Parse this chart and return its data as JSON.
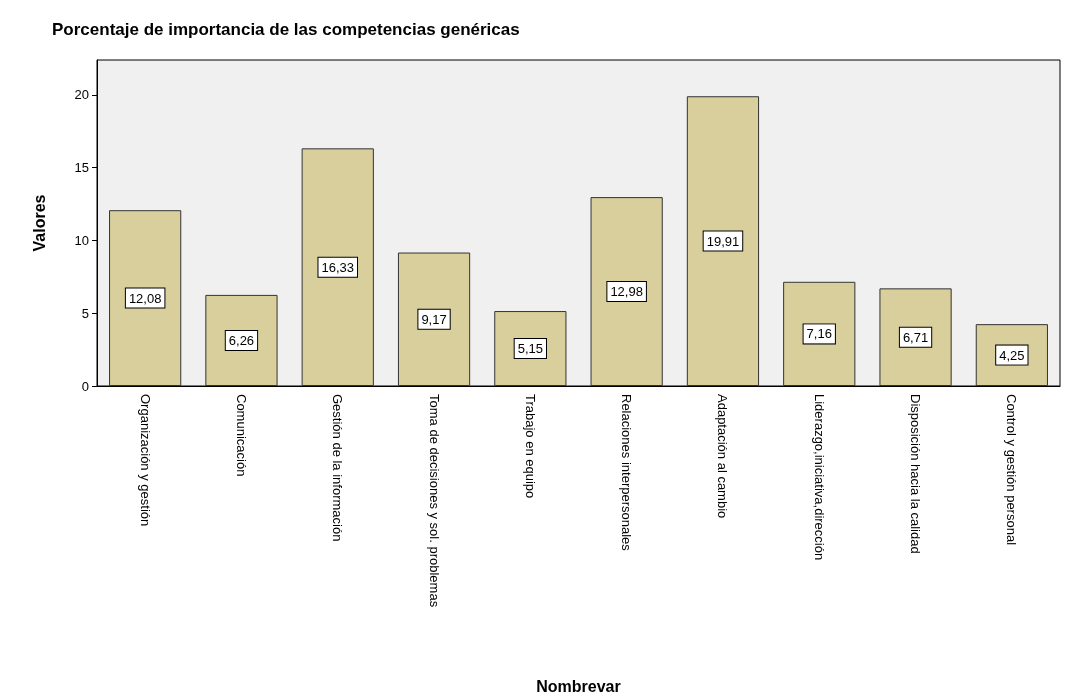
{
  "chart_data": {
    "type": "bar",
    "title": "Porcentaje de importancia de las competencias genéricas",
    "xlabel": "Nombrevar",
    "ylabel": "Valores",
    "categories": [
      "Organización y gestión",
      "Comunicación",
      "Gestión de la información",
      "Toma de decisiones y sol. problemas",
      "Trabajo en equipo",
      "Relaciones interpersonales",
      "Adaptación al cambio",
      "Liderazgo,iniciativa,dirección",
      "Disposición hacia la calidad",
      "Control y gestión personal"
    ],
    "values": [
      12.08,
      6.26,
      16.33,
      9.17,
      5.15,
      12.98,
      19.91,
      7.16,
      6.71,
      4.25
    ],
    "value_labels": [
      "12,08",
      "6,26",
      "16,33",
      "9,17",
      "5,15",
      "12,98",
      "19,91",
      "7,16",
      "6,71",
      "4,25"
    ],
    "color": "#d8cf9c",
    "ylim": [
      0,
      22.4
    ],
    "yticks": [
      0,
      5,
      10,
      15,
      20
    ],
    "grid": false
  }
}
